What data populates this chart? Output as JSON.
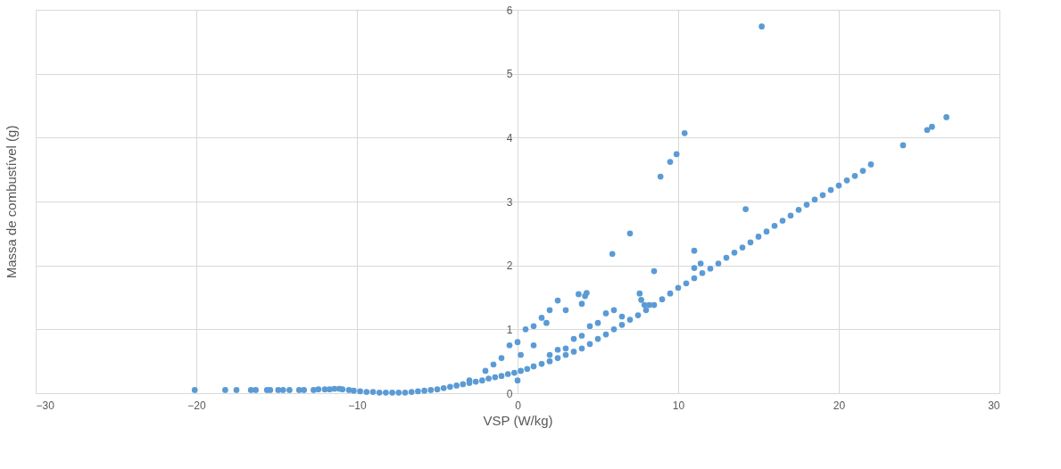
{
  "chart_data": {
    "type": "scatter",
    "xlabel": "VSP (W/kg)",
    "ylabel": "Massa de combustível (g)",
    "xlim": [
      -30,
      30
    ],
    "xticks": [
      -30,
      -20,
      -10,
      0,
      10,
      20,
      30
    ],
    "ylim": [
      0,
      6
    ],
    "yticks": [
      0,
      1,
      2,
      3,
      4,
      5,
      6
    ],
    "grid": true,
    "marker": "circle",
    "series": [
      {
        "color": "#5b9bd5",
        "x": [
          -20.1,
          -18.2,
          -17.5,
          -16.6,
          -16.3,
          -15.6,
          -15.4,
          -14.9,
          -14.6,
          -14.2,
          -13.6,
          -13.3,
          -12.7,
          -12.4,
          -12.0,
          -11.7,
          -11.4,
          -11.1,
          -10.9,
          -10.5,
          -10.2,
          -9.8,
          -9.4,
          -9.0,
          -8.6,
          -8.2,
          -7.8,
          -7.4,
          -7.0,
          -6.6,
          -6.2,
          -5.8,
          -5.4,
          -5.0,
          -4.6,
          -4.2,
          -3.8,
          -3.4,
          -3.0,
          -2.6,
          -2.2,
          -1.8,
          -1.4,
          -1.0,
          -0.6,
          -0.2,
          0.2,
          0.6,
          1.0,
          1.5,
          2.0,
          2.5,
          3.0,
          3.5,
          4.0,
          4.5,
          5.0,
          5.5,
          6.0,
          6.5,
          7.0,
          7.5,
          8.0,
          8.5,
          9.0,
          9.5,
          10.0,
          10.5,
          11.0,
          11.5,
          12.0,
          12.5,
          13.0,
          13.5,
          14.0,
          14.5,
          15.0,
          15.5,
          16.0,
          16.5,
          17.0,
          17.5,
          18.0,
          18.5,
          19.0,
          19.5,
          20.0,
          20.5,
          21.0,
          21.5,
          22.0,
          24.0,
          25.5,
          25.8,
          26.7,
          15.2,
          10.4,
          9.9,
          9.5,
          8.9,
          14.2,
          7.0,
          5.9,
          11.0,
          11.0,
          11.4,
          8.5,
          7.6,
          7.7,
          7.9,
          8.2,
          0.0,
          0.5,
          1.0,
          1.5,
          2.0,
          2.5,
          3.0,
          3.8,
          4.2,
          4.0,
          4.3,
          1.0,
          2.0,
          3.0,
          4.0,
          5.0,
          5.5,
          6.0,
          4.5,
          -1.0,
          -2.0,
          -3.0,
          -0.5,
          -1.5,
          0.0,
          2.5,
          3.5,
          6.5,
          1.8,
          0.2
        ],
        "values": [
          0.05,
          0.05,
          0.05,
          0.05,
          0.05,
          0.05,
          0.05,
          0.05,
          0.05,
          0.05,
          0.05,
          0.05,
          0.05,
          0.06,
          0.06,
          0.06,
          0.07,
          0.07,
          0.06,
          0.05,
          0.04,
          0.03,
          0.02,
          0.02,
          0.01,
          0.01,
          0.01,
          0.01,
          0.01,
          0.02,
          0.03,
          0.04,
          0.05,
          0.06,
          0.08,
          0.1,
          0.12,
          0.14,
          0.16,
          0.18,
          0.2,
          0.23,
          0.25,
          0.27,
          0.3,
          0.32,
          0.35,
          0.38,
          0.42,
          0.46,
          0.5,
          0.55,
          0.6,
          0.65,
          0.7,
          0.77,
          0.85,
          0.92,
          1.0,
          1.07,
          1.15,
          1.22,
          1.3,
          1.38,
          1.47,
          1.56,
          1.65,
          1.72,
          1.8,
          1.88,
          1.95,
          2.03,
          2.12,
          2.2,
          2.28,
          2.36,
          2.45,
          2.53,
          2.62,
          2.7,
          2.78,
          2.87,
          2.95,
          3.03,
          3.1,
          3.18,
          3.25,
          3.33,
          3.4,
          3.48,
          3.58,
          3.88,
          4.12,
          4.17,
          4.32,
          5.74,
          4.07,
          3.74,
          3.62,
          3.39,
          2.88,
          2.5,
          2.18,
          2.23,
          1.96,
          2.03,
          1.91,
          1.56,
          1.46,
          1.38,
          1.38,
          0.8,
          1.0,
          1.05,
          1.18,
          1.3,
          1.45,
          1.3,
          1.55,
          1.52,
          1.4,
          1.57,
          0.75,
          0.6,
          0.7,
          0.9,
          1.1,
          1.25,
          1.3,
          1.05,
          0.55,
          0.35,
          0.2,
          0.75,
          0.45,
          0.2,
          0.68,
          0.85,
          1.2,
          1.1,
          0.6
        ]
      }
    ]
  }
}
